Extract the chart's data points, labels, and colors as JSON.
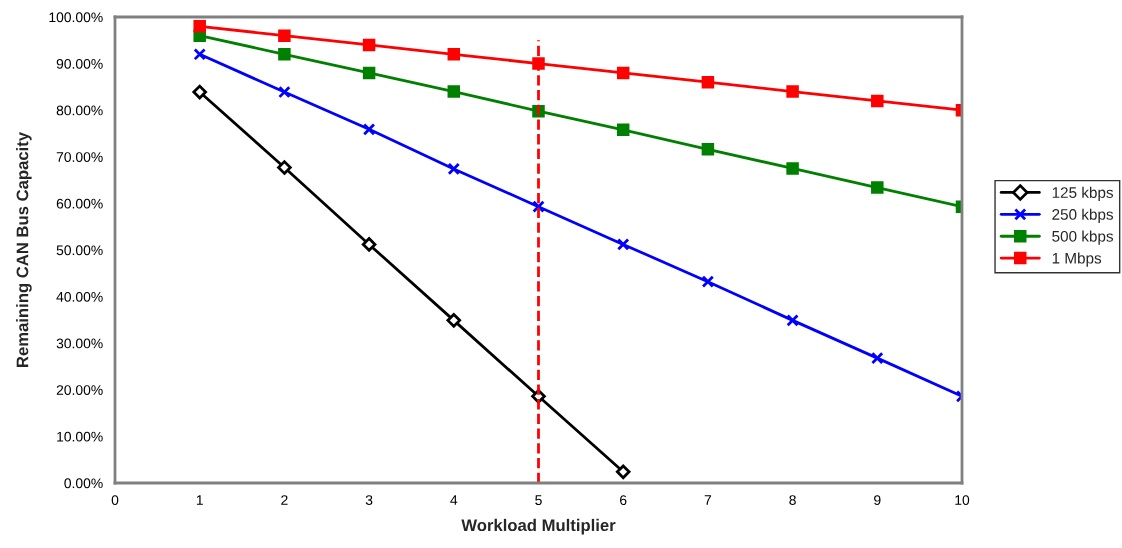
{
  "chart_data": {
    "type": "line",
    "xlabel": "Workload Multiplier",
    "ylabel": "Remaining CAN Bus Capacity",
    "xlim": [
      0,
      10
    ],
    "xticks": [
      0,
      1,
      2,
      3,
      4,
      5,
      6,
      7,
      8,
      9,
      10
    ],
    "ylim": [
      0,
      100
    ],
    "yticks": [
      {
        "value": 0,
        "label": "0.00%"
      },
      {
        "value": 10,
        "label": "10.00%"
      },
      {
        "value": 20,
        "label": "20.00%"
      },
      {
        "value": 30,
        "label": "30.00%"
      },
      {
        "value": 40,
        "label": "40.00%"
      },
      {
        "value": 50,
        "label": "50.00%"
      },
      {
        "value": 60,
        "label": "60.00%"
      },
      {
        "value": 70,
        "label": "70.00%"
      },
      {
        "value": 80,
        "label": "80.00%"
      },
      {
        "value": 90,
        "label": "90.00%"
      },
      {
        "value": 100,
        "label": "100.00%"
      }
    ],
    "grid": false,
    "legend": "right",
    "line_style": "solid",
    "series": [
      {
        "name": "125 kbps",
        "color": "#000000",
        "marker": "diamond",
        "x": [
          1,
          2,
          3,
          4,
          5,
          6
        ],
        "values": [
          83.9,
          67.7,
          51.2,
          34.9,
          18.6,
          2.4
        ]
      },
      {
        "name": "250 kbps",
        "color": "#0000ff",
        "marker": "cross",
        "x": [
          1,
          2,
          3,
          4,
          5,
          6,
          7,
          8,
          9,
          10
        ],
        "values": [
          92.0,
          83.9,
          75.9,
          67.4,
          59.3,
          51.2,
          43.2,
          34.9,
          26.8,
          18.6
        ]
      },
      {
        "name": "500 kbps",
        "color": "#008000",
        "marker": "square",
        "x": [
          1,
          2,
          3,
          4,
          5,
          6,
          7,
          8,
          9,
          10
        ],
        "values": [
          96.0,
          92.0,
          88.0,
          84.0,
          79.8,
          75.8,
          71.6,
          67.5,
          63.4,
          59.3
        ]
      },
      {
        "name": "1 Mbps",
        "color": "#ff0000",
        "marker": "square",
        "x": [
          1,
          2,
          3,
          4,
          5,
          6,
          7,
          8,
          9,
          10
        ],
        "values": [
          98.0,
          96.0,
          94.0,
          92.0,
          90.0,
          88.0,
          86.0,
          84.0,
          82.0,
          80.0
        ]
      }
    ],
    "ref_lines": [
      {
        "axis": "x",
        "value": 5,
        "color": "#ff0000",
        "line_style": "dashed"
      }
    ]
  }
}
